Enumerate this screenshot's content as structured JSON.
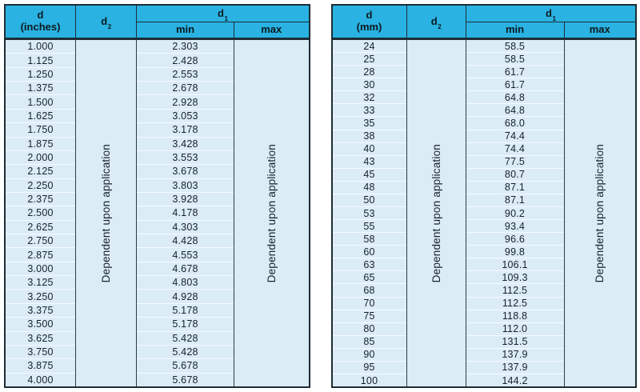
{
  "colors": {
    "header_bg": "#29b2e2",
    "row_bg": "#dcecf7",
    "row_separator": "#f7fbfe",
    "border_dark": "#1d2d36",
    "text": "#16212a",
    "page_bg": "#ffffff"
  },
  "note_text": "Dependent upon application",
  "tables": [
    {
      "id": "inches",
      "header": {
        "d_label": "d",
        "d_unit": "(inches)",
        "d2_base": "d",
        "d2_sub": "2",
        "d1_base": "d",
        "d1_sub": "1",
        "min_label": "min",
        "max_label": "max"
      },
      "rows": [
        [
          "1.000",
          "2.303"
        ],
        [
          "1.125",
          "2.428"
        ],
        [
          "1.250",
          "2.553"
        ],
        [
          "1.375",
          "2.678"
        ],
        [
          "1.500",
          "2.928"
        ],
        [
          "1.625",
          "3.053"
        ],
        [
          "1.750",
          "3.178"
        ],
        [
          "1.875",
          "3.428"
        ],
        [
          "2.000",
          "3.553"
        ],
        [
          "2.125",
          "3.678"
        ],
        [
          "2.250",
          "3.803"
        ],
        [
          "2.375",
          "3.928"
        ],
        [
          "2.500",
          "4.178"
        ],
        [
          "2.625",
          "4.303"
        ],
        [
          "2.750",
          "4.428"
        ],
        [
          "2.875",
          "4.553"
        ],
        [
          "3.000",
          "4.678"
        ],
        [
          "3.125",
          "4.803"
        ],
        [
          "3.250",
          "4.928"
        ],
        [
          "3.375",
          "5.178"
        ],
        [
          "3.500",
          "5.178"
        ],
        [
          "3.625",
          "5.428"
        ],
        [
          "3.750",
          "5.428"
        ],
        [
          "3.875",
          "5.678"
        ],
        [
          "4.000",
          "5.678"
        ]
      ]
    },
    {
      "id": "mm",
      "header": {
        "d_label": "d",
        "d_unit": "(mm)",
        "d2_base": "d",
        "d2_sub": "2",
        "d1_base": "d",
        "d1_sub": "1",
        "min_label": "min",
        "max_label": "max"
      },
      "rows": [
        [
          "24",
          "58.5"
        ],
        [
          "25",
          "58.5"
        ],
        [
          "28",
          "61.7"
        ],
        [
          "30",
          "61.7"
        ],
        [
          "32",
          "64.8"
        ],
        [
          "33",
          "64.8"
        ],
        [
          "35",
          "68.0"
        ],
        [
          "38",
          "74.4"
        ],
        [
          "40",
          "74.4"
        ],
        [
          "43",
          "77.5"
        ],
        [
          "45",
          "80.7"
        ],
        [
          "48",
          "87.1"
        ],
        [
          "50",
          "87.1"
        ],
        [
          "53",
          "90.2"
        ],
        [
          "55",
          "93.4"
        ],
        [
          "58",
          "96.6"
        ],
        [
          "60",
          "99.8"
        ],
        [
          "63",
          "106.1"
        ],
        [
          "65",
          "109.3"
        ],
        [
          "68",
          "112.5"
        ],
        [
          "70",
          "112.5"
        ],
        [
          "75",
          "118.8"
        ],
        [
          "80",
          "112.0"
        ],
        [
          "85",
          "131.5"
        ],
        [
          "90",
          "137.9"
        ],
        [
          "95",
          "137.9"
        ],
        [
          "100",
          "144.2"
        ]
      ]
    }
  ]
}
